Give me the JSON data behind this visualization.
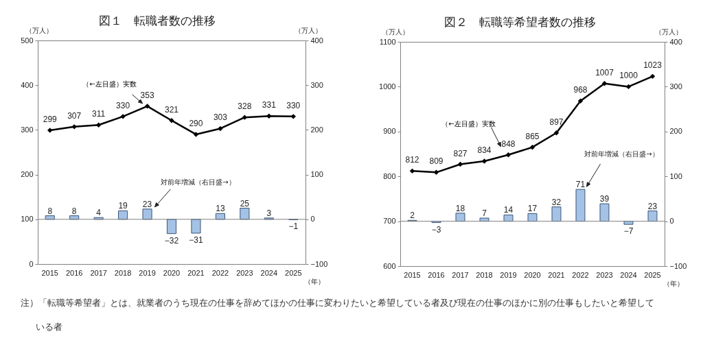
{
  "chart_data": [
    {
      "type": "line",
      "title": "図１　転職者数の推移",
      "ylabel": "（万人）",
      "y2label": "（万人）",
      "xlabel": "（年）",
      "categories": [
        "2015",
        "2016",
        "2017",
        "2018",
        "2019",
        "2020",
        "2021",
        "2022",
        "2023",
        "2024",
        "2025"
      ],
      "series": [
        {
          "name": "（←左目盛）実数",
          "color": "#000000",
          "values": [
            299,
            307,
            311,
            330,
            353,
            321,
            290,
            303,
            328,
            331,
            330
          ]
        },
        {
          "name": "対前年増減（右目盛→）",
          "type": "bar",
          "axis": "y2",
          "color": "#a3c2e6",
          "values": [
            8,
            8,
            4,
            19,
            23,
            -32,
            -31,
            13,
            25,
            3,
            -1
          ]
        }
      ],
      "ylim": [
        0,
        500
      ],
      "yticks": [
        0,
        100,
        200,
        300,
        400,
        500
      ],
      "y2lim": [
        -100,
        400
      ],
      "y2ticks": [
        -100,
        0,
        100,
        200,
        300,
        400
      ],
      "ref_lines": [
        {
          "axis": "y2",
          "value": 0,
          "color": "#808080"
        }
      ],
      "marker": "diamond",
      "line_style": "solid",
      "data_labels": true
    },
    {
      "type": "line",
      "title": "図２　転職等希望者数の推移",
      "ylabel": "（万人）",
      "y2label": "（万人）",
      "xlabel": "（年）",
      "categories": [
        "2015",
        "2016",
        "2017",
        "2018",
        "2019",
        "2020",
        "2021",
        "2022",
        "2023",
        "2024",
        "2025"
      ],
      "series": [
        {
          "name": "（←左目盛）実数",
          "color": "#000000",
          "values": [
            812,
            809,
            827,
            834,
            848,
            865,
            897,
            968,
            1007,
            1000,
            1023
          ]
        },
        {
          "name": "対前年増減（右目盛→）",
          "type": "bar",
          "axis": "y2",
          "color": "#a3c2e6",
          "values": [
            2,
            -3,
            18,
            7,
            14,
            17,
            32,
            71,
            39,
            -7,
            23
          ]
        }
      ],
      "ylim": [
        600,
        1100
      ],
      "yticks": [
        600,
        700,
        800,
        900,
        1000,
        1100
      ],
      "y2lim": [
        -100,
        400
      ],
      "y2ticks": [
        -100,
        0,
        100,
        200,
        300,
        400
      ],
      "ref_lines": [
        {
          "axis": "y2",
          "value": 0,
          "color": "#808080"
        }
      ],
      "marker": "diamond",
      "line_style": "solid",
      "data_labels": true,
      "annotations": [
        "注）「転職等希望者」とは、就業者のうち現在の仕事を辞めてほかの仕事に変わりたいと希望している者及び現在の仕事のほかに別の仕事もしたいと希望している者"
      ]
    }
  ]
}
